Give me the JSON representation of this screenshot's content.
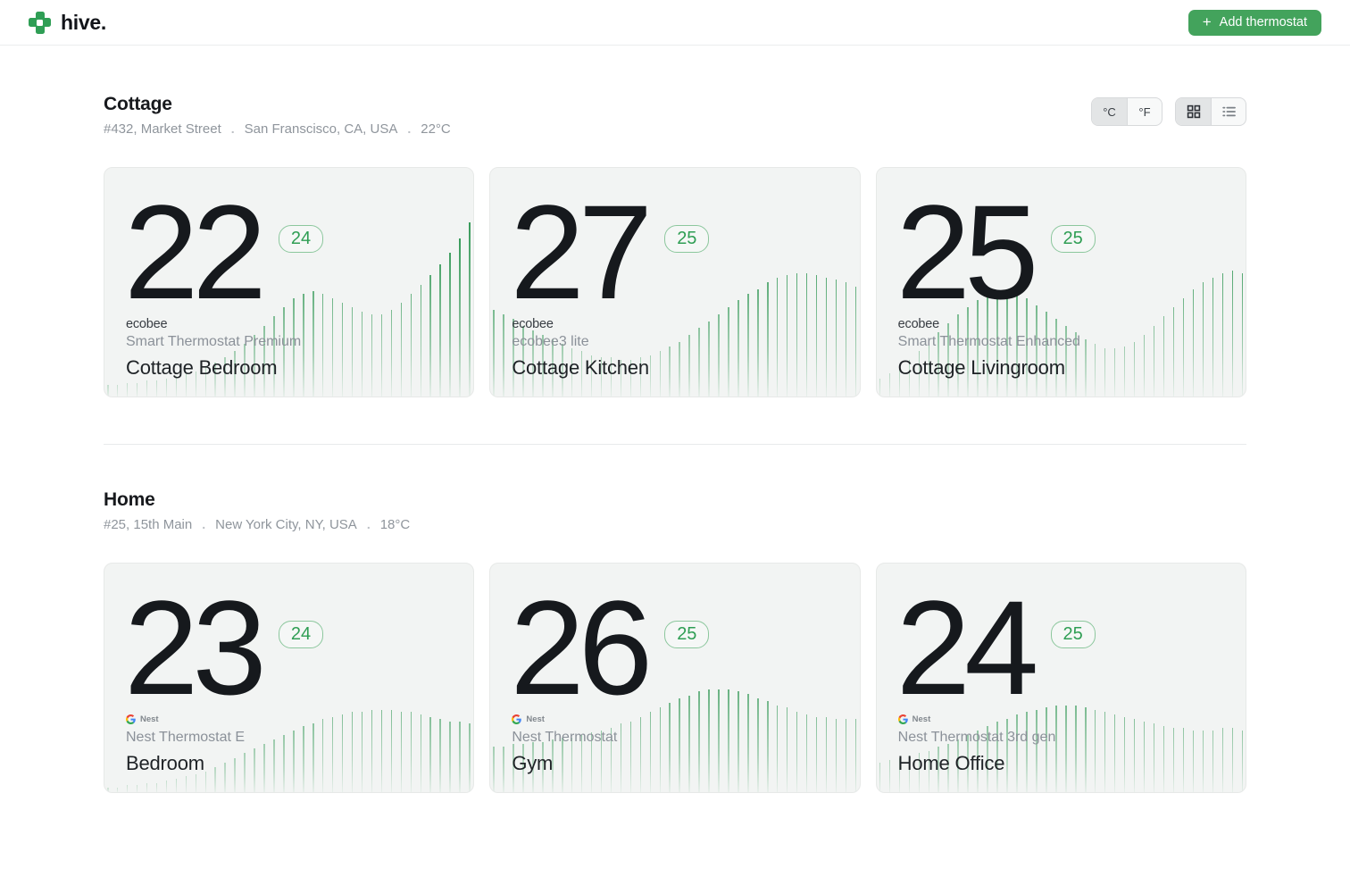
{
  "header": {
    "brand": "hive.",
    "add_thermostat": {
      "icon": "+",
      "label": "Add thermostat"
    }
  },
  "controls": {
    "celsius": "°C",
    "fahrenheit": "°F",
    "selected_unit": "°C",
    "selected_view": "grid"
  },
  "separator": ".",
  "colors": {
    "accent_green": "#43a35c",
    "logo_green": "#2f9e55",
    "badge_green": "#2f9e54",
    "bar_green": "#2e9652",
    "card_bg": "#f2f4f3"
  },
  "sections": [
    {
      "name": "Cottage",
      "street": "#432, Market Street",
      "city": "San Franscisco, CA, USA",
      "outdoor_temp": "22°C",
      "show_controls": true,
      "cards": [
        {
          "current_temp": "22",
          "target_temp": "24",
          "brand_type": "ecobee",
          "brand_label": "ecobee",
          "model": "Smart Thermostat Premium",
          "room": "Cottage Bedroom",
          "spark": [
            0.05,
            0.05,
            0.06,
            0.06,
            0.07,
            0.07,
            0.08,
            0.09,
            0.1,
            0.11,
            0.13,
            0.15,
            0.17,
            0.2,
            0.23,
            0.27,
            0.31,
            0.35,
            0.39,
            0.43,
            0.45,
            0.46,
            0.45,
            0.43,
            0.41,
            0.39,
            0.37,
            0.36,
            0.36,
            0.38,
            0.41,
            0.45,
            0.49,
            0.53,
            0.58,
            0.63,
            0.69,
            0.76
          ]
        },
        {
          "current_temp": "27",
          "target_temp": "25",
          "brand_type": "ecobee",
          "brand_label": "ecobee",
          "model": "ecobee3 lite",
          "room": "Cottage Kitchen",
          "spark": [
            0.38,
            0.36,
            0.34,
            0.31,
            0.29,
            0.27,
            0.25,
            0.23,
            0.21,
            0.2,
            0.18,
            0.17,
            0.17,
            0.16,
            0.16,
            0.17,
            0.18,
            0.2,
            0.22,
            0.24,
            0.27,
            0.3,
            0.33,
            0.36,
            0.39,
            0.42,
            0.45,
            0.47,
            0.5,
            0.52,
            0.53,
            0.54,
            0.54,
            0.53,
            0.52,
            0.51,
            0.5,
            0.48
          ]
        },
        {
          "current_temp": "25",
          "target_temp": "25",
          "brand_type": "ecobee",
          "brand_label": "ecobee",
          "model": "Smart Thermostat Enhanced",
          "room": "Cottage Livingroom",
          "spark": [
            0.08,
            0.1,
            0.13,
            0.16,
            0.2,
            0.24,
            0.28,
            0.32,
            0.36,
            0.39,
            0.42,
            0.45,
            0.46,
            0.46,
            0.45,
            0.43,
            0.4,
            0.37,
            0.34,
            0.31,
            0.28,
            0.25,
            0.23,
            0.21,
            0.21,
            0.22,
            0.24,
            0.27,
            0.31,
            0.35,
            0.39,
            0.43,
            0.47,
            0.5,
            0.52,
            0.54,
            0.55,
            0.54
          ]
        }
      ]
    },
    {
      "name": "Home",
      "street": "#25, 15th Main",
      "city": "New York City, NY, USA",
      "outdoor_temp": "18°C",
      "show_controls": false,
      "cards": [
        {
          "current_temp": "23",
          "target_temp": "24",
          "brand_type": "nest",
          "brand_label": "Nest",
          "model": "Nest Thermostat E",
          "room": "Bedroom",
          "spark": [
            0.02,
            0.02,
            0.03,
            0.03,
            0.04,
            0.04,
            0.05,
            0.06,
            0.07,
            0.08,
            0.09,
            0.11,
            0.13,
            0.15,
            0.17,
            0.19,
            0.21,
            0.23,
            0.25,
            0.27,
            0.29,
            0.3,
            0.32,
            0.33,
            0.34,
            0.35,
            0.35,
            0.36,
            0.36,
            0.36,
            0.35,
            0.35,
            0.34,
            0.33,
            0.32,
            0.31,
            0.31,
            0.3
          ]
        },
        {
          "current_temp": "26",
          "target_temp": "25",
          "brand_type": "nest",
          "brand_label": "Nest",
          "model": "Nest Thermostat",
          "room": "Gym",
          "spark": [
            0.2,
            0.2,
            0.21,
            0.21,
            0.22,
            0.22,
            0.23,
            0.24,
            0.24,
            0.25,
            0.26,
            0.27,
            0.28,
            0.3,
            0.31,
            0.33,
            0.35,
            0.37,
            0.39,
            0.41,
            0.42,
            0.44,
            0.45,
            0.45,
            0.45,
            0.44,
            0.43,
            0.41,
            0.4,
            0.38,
            0.37,
            0.35,
            0.34,
            0.33,
            0.33,
            0.32,
            0.32,
            0.32
          ]
        },
        {
          "current_temp": "24",
          "target_temp": "25",
          "brand_type": "nest",
          "brand_label": "Nest",
          "model": "Nest Thermostat 3rd gen",
          "room": "Home Office",
          "spark": [
            0.13,
            0.14,
            0.15,
            0.16,
            0.17,
            0.18,
            0.2,
            0.21,
            0.23,
            0.25,
            0.27,
            0.29,
            0.31,
            0.32,
            0.34,
            0.35,
            0.36,
            0.37,
            0.38,
            0.38,
            0.38,
            0.37,
            0.36,
            0.35,
            0.34,
            0.33,
            0.32,
            0.31,
            0.3,
            0.29,
            0.28,
            0.28,
            0.27,
            0.27,
            0.27,
            0.28,
            0.28,
            0.27
          ]
        }
      ]
    }
  ]
}
